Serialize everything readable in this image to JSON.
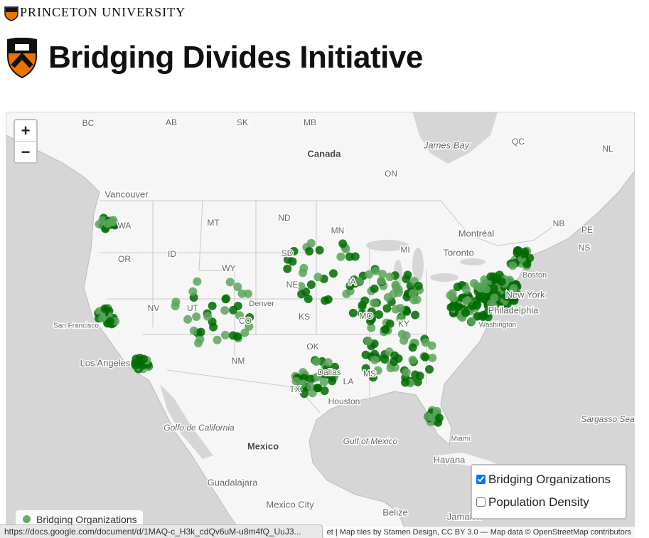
{
  "header": {
    "university": "PRINCETON UNIVERSITY",
    "title": "Bridging Divides Initiative"
  },
  "map": {
    "zoom_in": "+",
    "zoom_out": "−",
    "labels": [
      "BC",
      "AB",
      "SK",
      "MB",
      "Canada",
      "James Bay",
      "QC",
      "NL",
      "ON",
      "Vancouver",
      "WA",
      "MT",
      "ND",
      "MN",
      "Montréal",
      "NB",
      "PE",
      "NS",
      "Toronto",
      "MI",
      "OR",
      "ID",
      "SD",
      "WY",
      "Boston",
      "NE",
      "IA",
      "New York",
      "Denver",
      "NV",
      "UT",
      "Philadelphia",
      "San Francisco",
      "CO",
      "KS",
      "MO",
      "KY",
      "Washington",
      "Los Angeles",
      "NM",
      "OK",
      "Dallas",
      "MS",
      "LA",
      "TX",
      "Houston",
      "Golfo de California",
      "Mexico",
      "Gulf of Mexico",
      "Miami",
      "Sargasso Sea",
      "Havana",
      "Guadalajara",
      "Mexico City",
      "Belize",
      "Jamaica"
    ],
    "layers": [
      "Bridging Organizations",
      "Population Density"
    ],
    "legend": "Bridging Organizations",
    "attribution": "et | Map tiles by Stamen Design, CC BY 3.0 — Map data © OpenStreetMap contributors"
  },
  "status_url": "https://docs.google.com/document/d/1MAQ-c_H3k_cdQv6uM-u8m4fQ_UuJ3..."
}
